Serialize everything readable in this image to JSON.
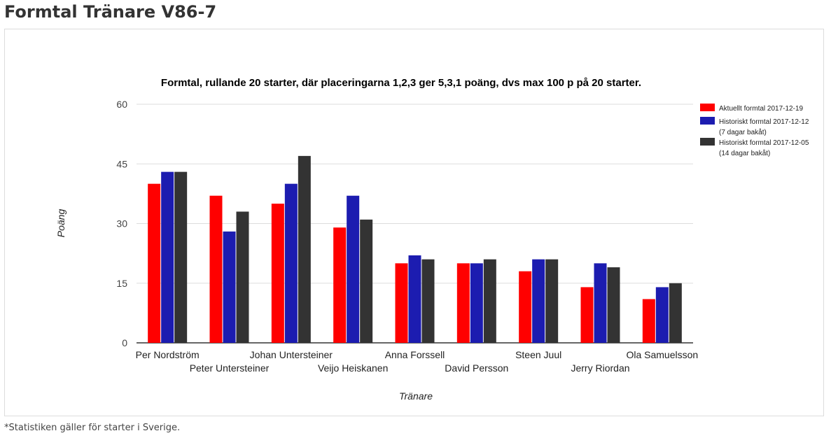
{
  "page": {
    "heading": "Formtal Tränare V86-7",
    "footnote": "*Statistiken gäller för starter i Sverige."
  },
  "colors": {
    "series": [
      "#ff0000",
      "#1c1cb0",
      "#333333"
    ],
    "gridline": "#dddddd",
    "baseline": "#333333"
  },
  "chart_data": {
    "type": "bar",
    "title": "Formtal, rullande 20 starter, där placeringarna 1,2,3 ger 5,3,1 poäng, dvs max 100 p på 20 starter.",
    "xlabel": "Tränare",
    "ylabel": "Poäng",
    "ylim": [
      0,
      60
    ],
    "yticks": [
      0,
      15,
      30,
      45,
      60
    ],
    "grid": true,
    "legend_position": "right",
    "categories": [
      "Per Nordström",
      "Peter Untersteiner",
      "Johan Untersteiner",
      "Veijo Heiskanen",
      "Anna Forssell",
      "David Persson",
      "Steen Juul",
      "Jerry Riordan",
      "Ola Samuelsson"
    ],
    "series": [
      {
        "name": "Aktuellt formtal 2017-12-19",
        "legend_lines": [
          "Aktuellt formtal 2017-12-19"
        ],
        "values": [
          40,
          37,
          35,
          29,
          20,
          20,
          18,
          14,
          11
        ]
      },
      {
        "name": "Historiskt formtal 2017-12-12 (7 dagar bakåt)",
        "legend_lines": [
          "Historiskt formtal 2017-12-12",
          "(7 dagar bakåt)"
        ],
        "values": [
          43,
          28,
          40,
          37,
          22,
          20,
          21,
          20,
          14
        ]
      },
      {
        "name": "Historiskt formtal 2017-12-05 (14 dagar bakåt)",
        "legend_lines": [
          "Historiskt formtal 2017-12-05",
          "(14 dagar bakåt)"
        ],
        "values": [
          43,
          33,
          47,
          31,
          21,
          21,
          21,
          19,
          15
        ]
      }
    ]
  }
}
